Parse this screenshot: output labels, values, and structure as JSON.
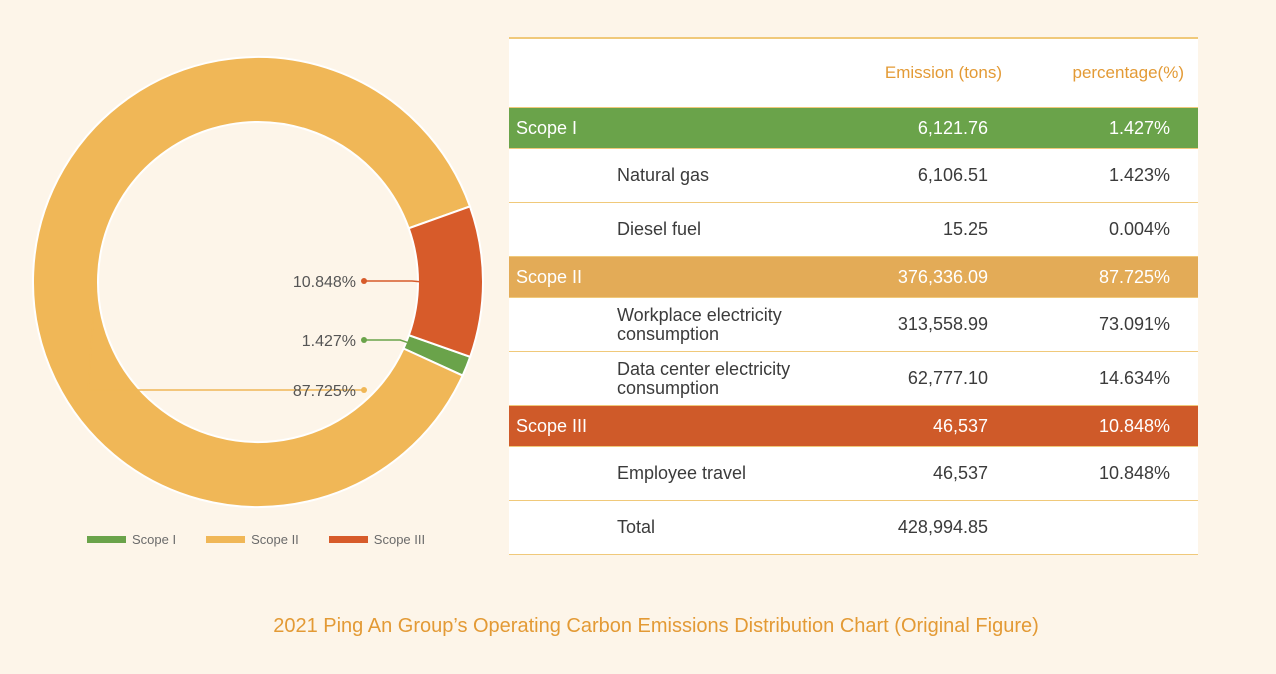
{
  "chart_data": {
    "type": "pie",
    "donut": true,
    "categories": [
      "Scope I",
      "Scope II",
      "Scope III"
    ],
    "values": [
      1.427,
      87.725,
      10.848
    ],
    "slice_labels": [
      "1.427%",
      "87.725%",
      "10.848%"
    ],
    "colors": [
      "#6aa34a",
      "#f0b757",
      "#d75b2a"
    ],
    "legend": "bottom",
    "legend_entries": [
      "Scope I",
      "Scope II",
      "Scope III"
    ],
    "title": "2021 Ping An Group’s Operating Carbon Emissions Distribution Chart (Original Figure)"
  },
  "table": {
    "headers": [
      "",
      "Emission (tons)",
      "percentage(%)"
    ],
    "rows": [
      {
        "kind": "scope",
        "name": "Scope I",
        "value": "6,121.76",
        "pct": "1.427%",
        "color": "#6aa34a"
      },
      {
        "kind": "item",
        "name": "Natural gas",
        "value": "6,106.51",
        "pct": "1.423%"
      },
      {
        "kind": "item",
        "name": "Diesel fuel",
        "value": "15.25",
        "pct": "0.004%"
      },
      {
        "kind": "scope",
        "name": "Scope II",
        "value": "376,336.09",
        "pct": "87.725%",
        "color": "#e3ab57"
      },
      {
        "kind": "item",
        "name": "Workplace electricity consumption",
        "value": "313,558.99",
        "pct": "73.091%"
      },
      {
        "kind": "item",
        "name": "Data center electricity consumption",
        "value": "62,777.10",
        "pct": "14.634%"
      },
      {
        "kind": "scope",
        "name": "Scope III",
        "value": "46,537",
        "pct": "10.848%",
        "color": "#cf5a29"
      },
      {
        "kind": "item",
        "name": "Employee travel",
        "value": "46,537",
        "pct": "10.848%"
      },
      {
        "kind": "total",
        "name": "Total",
        "value": "428,994.85",
        "pct": ""
      }
    ]
  }
}
